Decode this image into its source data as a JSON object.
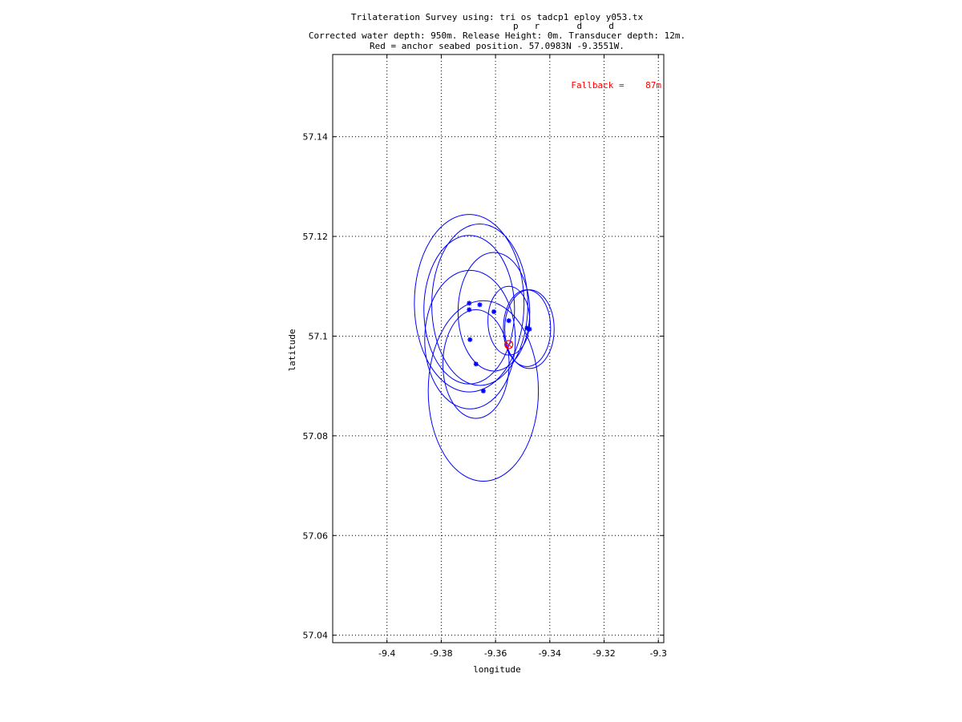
{
  "chart_data": {
    "type": "scatter",
    "title_lines": [
      "Trilateration Survey using: tri os tadcp1 eploy y053.tx",
      "p   r       d     d",
      "Corrected water depth: 950m. Release Height: 0m. Transducer depth: 12m.",
      "Red = anchor seabed position. 57.0983N -9.3551W."
    ],
    "xlabel": "longitude",
    "ylabel": "latitude",
    "annotation": "Fallback =    87m",
    "xlim": [
      -9.42,
      -9.298
    ],
    "ylim": [
      57.0385,
      57.1565
    ],
    "xticks": [
      -9.4,
      -9.38,
      -9.36,
      -9.34,
      -9.32,
      -9.3
    ],
    "xtick_labels": [
      "-9.4",
      "-9.38",
      "-9.36",
      "-9.34",
      "-9.32",
      "-9.3"
    ],
    "yticks": [
      57.04,
      57.06,
      57.08,
      57.1,
      57.12,
      57.14
    ],
    "ytick_labels": [
      "57.04",
      "57.06",
      "57.08",
      "57.1",
      "57.12",
      "57.14"
    ],
    "grid": true,
    "colors": {
      "circles": "#0000ff",
      "anchor": "#ff0000",
      "axes": "#000000"
    },
    "survey_points": [
      {
        "lon": -9.3697,
        "lat": 57.1066,
        "range_lon": 0.0202,
        "range_lat": 0.0178
      },
      {
        "lon": -9.3697,
        "lat": 57.1053,
        "range_lon": 0.0167,
        "range_lat": 0.0149
      },
      {
        "lon": -9.3658,
        "lat": 57.1063,
        "range_lon": 0.0177,
        "range_lat": 0.0162
      },
      {
        "lon": -9.3606,
        "lat": 57.1049,
        "range_lon": 0.0132,
        "range_lat": 0.0119
      },
      {
        "lon": -9.3551,
        "lat": 57.1031,
        "range_lon": 0.0077,
        "range_lat": 0.0069
      },
      {
        "lon": -9.3484,
        "lat": 57.1016,
        "range_lon": 0.0087,
        "range_lat": 0.0077
      },
      {
        "lon": -9.3475,
        "lat": 57.1014,
        "range_lon": 0.0091,
        "range_lat": 0.0079
      },
      {
        "lon": -9.3694,
        "lat": 57.0993,
        "range_lon": 0.0167,
        "range_lat": 0.0139
      },
      {
        "lon": -9.3672,
        "lat": 57.0944,
        "range_lon": 0.0122,
        "range_lat": 0.0109
      },
      {
        "lon": -9.3645,
        "lat": 57.089,
        "range_lon": 0.0203,
        "range_lat": 0.0181
      }
    ],
    "anchor": {
      "lon": -9.3551,
      "lat": 57.0983
    }
  }
}
